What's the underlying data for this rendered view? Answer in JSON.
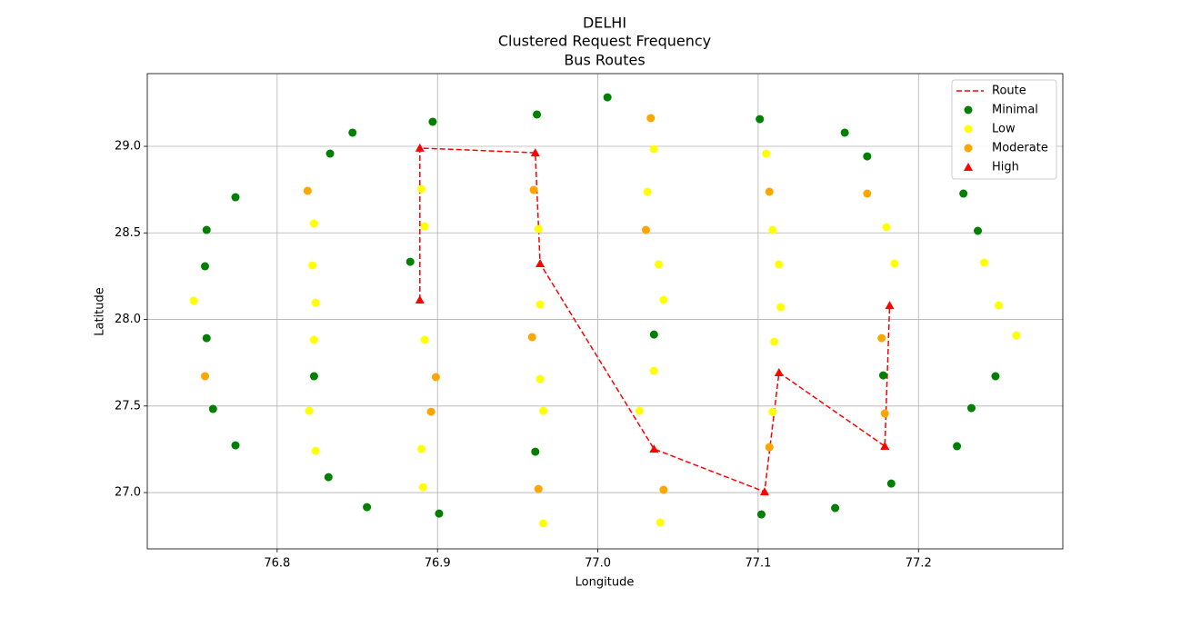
{
  "chart_data": {
    "type": "scatter",
    "title": [
      "DELHI",
      "Clustered Request Frequency",
      "Bus Routes"
    ],
    "x_label": "Longitude",
    "y_label": "Latitude",
    "xlim": [
      76.719,
      77.29
    ],
    "ylim": [
      26.675,
      29.42
    ],
    "xticks": [
      76.8,
      76.9,
      {
        "value": 77,
        "label": "77.0"
      },
      77.1,
      77.2
    ],
    "yticks": [
      {
        "value": 27,
        "label": "27.0"
      },
      27.5,
      {
        "value": 28,
        "label": "28.0"
      },
      28.5,
      {
        "value": 29,
        "label": "29.0"
      }
    ],
    "grid": true,
    "legend": "upper right",
    "series": [
      {
        "name": "Route",
        "type": "line",
        "dash": true,
        "color": "#ff0000",
        "x": [
          76.889,
          76.889,
          76.961,
          76.964,
          77.035,
          77.104,
          77.113,
          77.179,
          77.182
        ],
        "y": [
          28.113,
          28.99,
          28.963,
          28.323,
          27.252,
          27.005,
          27.693,
          27.268,
          28.081
        ]
      },
      {
        "name": "Minimal",
        "type": "scatter",
        "marker": "circle",
        "color": "#008000",
        "x": [
          76.847,
          76.833,
          76.774,
          76.756,
          76.755,
          76.756,
          76.76,
          76.774,
          76.832,
          76.856,
          76.901,
          76.897,
          76.962,
          77.006,
          77.101,
          77.154,
          77.168,
          77.228,
          77.237,
          76.883,
          77.035,
          76.961,
          77.102,
          77.148,
          77.183,
          77.224,
          77.233,
          77.248,
          77.178,
          76.823
        ],
        "y": [
          29.079,
          28.958,
          28.706,
          28.517,
          28.307,
          27.892,
          27.483,
          27.273,
          27.089,
          26.916,
          26.879,
          29.142,
          29.184,
          29.283,
          29.157,
          29.079,
          28.942,
          28.727,
          28.512,
          28.333,
          27.913,
          27.236,
          26.874,
          26.911,
          27.052,
          27.268,
          27.488,
          27.672,
          27.677,
          27.672
        ]
      },
      {
        "name": "Low",
        "type": "scatter",
        "marker": "circle",
        "color": "#ffff00",
        "x": [
          76.748,
          76.823,
          76.822,
          76.824,
          76.823,
          76.82,
          76.824,
          76.89,
          76.892,
          76.892,
          76.89,
          76.891,
          76.963,
          76.964,
          76.964,
          76.966,
          76.966,
          77.035,
          77.031,
          77.038,
          77.041,
          77.035,
          77.026,
          77.039,
          77.105,
          77.109,
          77.113,
          77.114,
          77.11,
          77.109,
          77.18,
          77.185,
          77.241,
          77.25,
          77.261
        ],
        "y": [
          28.108,
          28.554,
          28.312,
          28.097,
          27.882,
          27.472,
          27.241,
          28.753,
          28.538,
          27.882,
          27.252,
          27.031,
          28.522,
          28.087,
          27.656,
          27.472,
          26.822,
          28.984,
          28.738,
          28.318,
          28.113,
          27.703,
          27.472,
          26.827,
          28.958,
          28.517,
          28.318,
          28.071,
          27.871,
          27.467,
          28.533,
          28.323,
          28.328,
          28.081,
          27.908
        ]
      },
      {
        "name": "Moderate",
        "type": "scatter",
        "marker": "circle",
        "color": "#ffa500",
        "x": [
          76.819,
          76.755,
          76.899,
          76.896,
          76.96,
          76.959,
          76.963,
          77.033,
          77.03,
          77.041,
          77.107,
          77.107,
          77.168,
          77.177,
          77.179
        ],
        "y": [
          28.743,
          27.672,
          27.667,
          27.467,
          28.748,
          27.898,
          27.021,
          29.163,
          28.517,
          27.016,
          28.738,
          27.262,
          28.727,
          27.892,
          27.457
        ]
      },
      {
        "name": "High",
        "type": "scatter",
        "marker": "triangle",
        "color": "#ff0000",
        "x": [
          76.889,
          76.889,
          76.961,
          76.964,
          77.035,
          77.104,
          77.113,
          77.179,
          77.182
        ],
        "y": [
          28.113,
          28.99,
          28.963,
          28.323,
          27.252,
          27.005,
          27.693,
          27.268,
          28.081
        ]
      }
    ]
  }
}
